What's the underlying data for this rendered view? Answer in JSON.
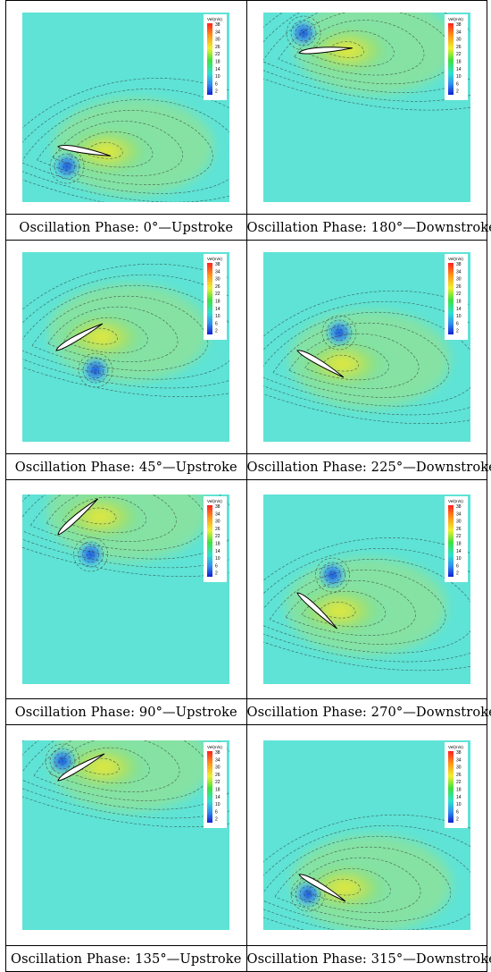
{
  "colorbar": {
    "title": "Vel(m/s)",
    "ticks": [
      "38",
      "34",
      "30",
      "26",
      "22",
      "18",
      "14",
      "10",
      "6",
      "2"
    ]
  },
  "panels": [
    {
      "caption": "Oscillation Phase: 0°—Upstroke",
      "pitch_deg": -10,
      "pivot_pos": "bottom-left",
      "vortex": "below-lead"
    },
    {
      "caption": "Oscillation Phase: 180°—Downstroke",
      "pitch_deg": 5,
      "pivot_pos": "top-left",
      "vortex": "above-lead"
    },
    {
      "caption": "Oscillation Phase: 45°—Upstroke",
      "pitch_deg": 30,
      "pivot_pos": "mid-left",
      "vortex": "below-trail"
    },
    {
      "caption": "Oscillation Phase: 225°—Downstroke",
      "pitch_deg": -30,
      "pivot_pos": "mid-left",
      "vortex": "above-trail"
    },
    {
      "caption": "Oscillation Phase: 90°—Upstroke",
      "pitch_deg": 42,
      "pivot_pos": "top-left",
      "vortex": "below-trail"
    },
    {
      "caption": "Oscillation Phase: 270°—Downstroke",
      "pitch_deg": -42,
      "pivot_pos": "mid-left",
      "vortex": "above-trail"
    },
    {
      "caption": "Oscillation Phase: 135°—Upstroke",
      "pitch_deg": 30,
      "pivot_pos": "top-left",
      "vortex": "above-lead"
    },
    {
      "caption": "Oscillation Phase: 315°—Downstroke",
      "pitch_deg": -30,
      "pivot_pos": "bottom-left",
      "vortex": "below-lead"
    }
  ]
}
